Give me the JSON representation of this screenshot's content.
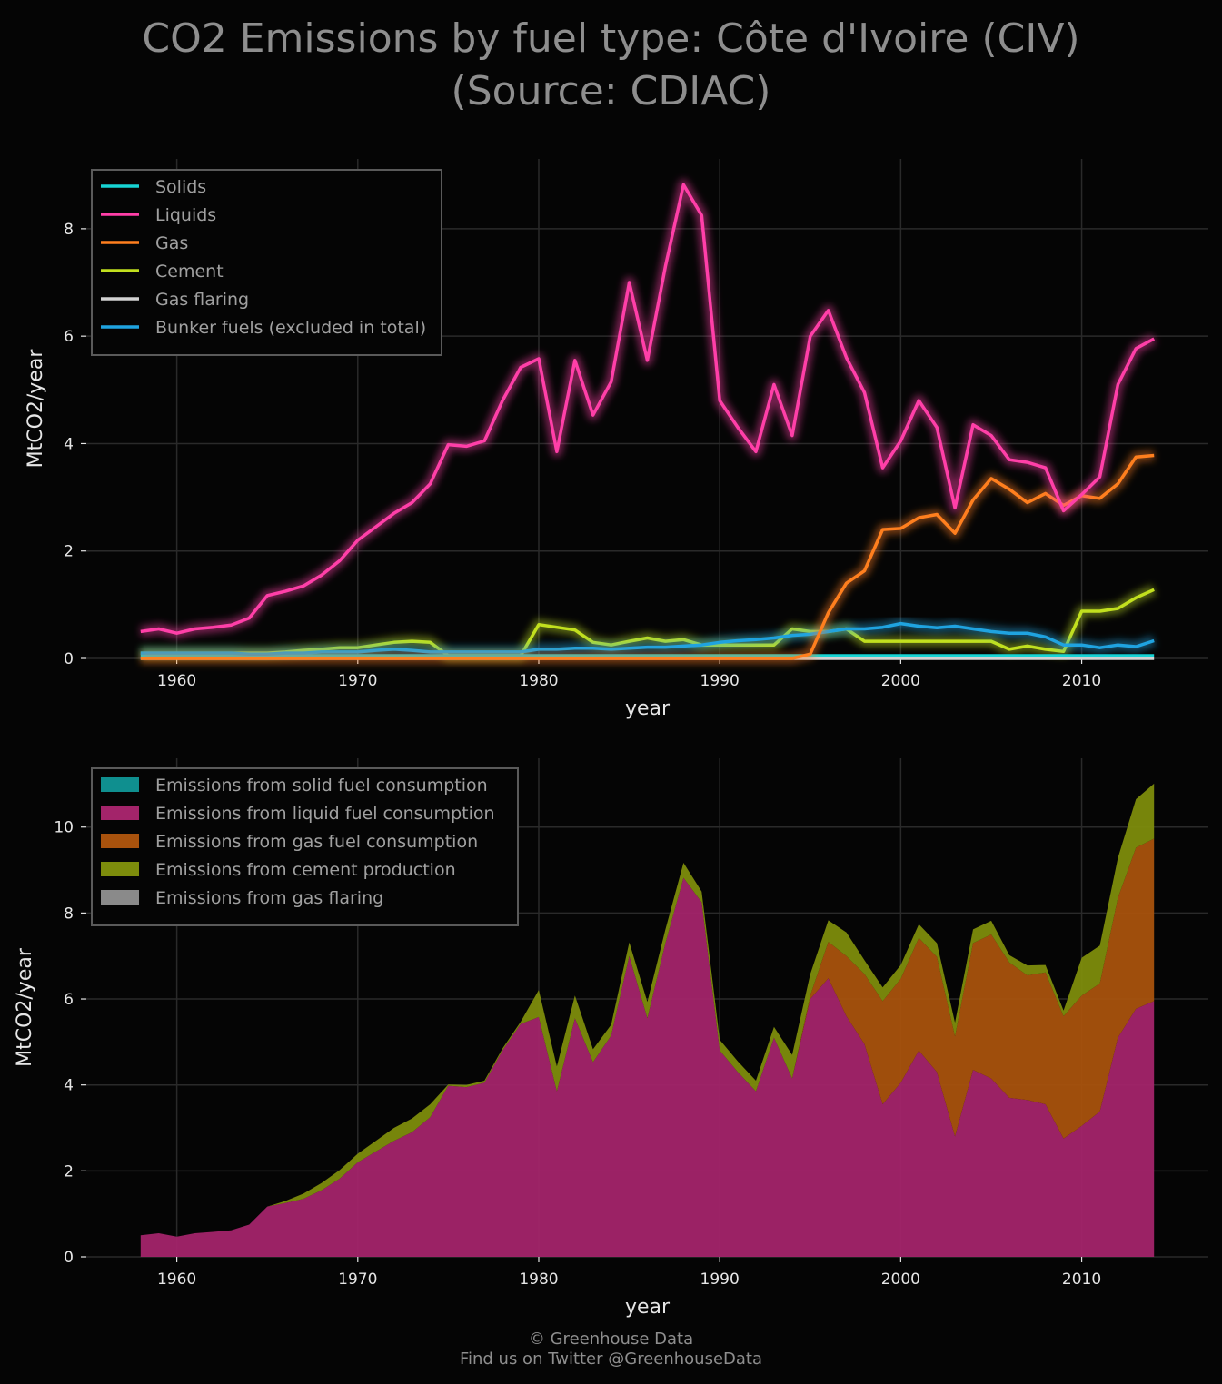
{
  "title": {
    "line1": "CO2 Emissions by fuel type: Côte d'Ivoire (CIV)",
    "line2": "(Source: CDIAC)"
  },
  "footer": {
    "line1": "© Greenhouse Data",
    "line2": "Find us on Twitter @GreenhouseData"
  },
  "chart_data": [
    {
      "type": "line",
      "xlabel": "year",
      "ylabel": "MtCO2/year",
      "xlim": [
        1955,
        2017
      ],
      "ylim": [
        0,
        9.3
      ],
      "xticks": [
        1960,
        1970,
        1980,
        1990,
        2000,
        2010
      ],
      "yticks": [
        0,
        2,
        4,
        6,
        8
      ],
      "grid": true,
      "legend_position": "top-left",
      "x": [
        1958,
        1959,
        1960,
        1961,
        1962,
        1963,
        1964,
        1965,
        1966,
        1967,
        1968,
        1969,
        1970,
        1971,
        1972,
        1973,
        1974,
        1975,
        1976,
        1977,
        1978,
        1979,
        1980,
        1981,
        1982,
        1983,
        1984,
        1985,
        1986,
        1987,
        1988,
        1989,
        1990,
        1991,
        1992,
        1993,
        1994,
        1995,
        1996,
        1997,
        1998,
        1999,
        2000,
        2001,
        2002,
        2003,
        2004,
        2005,
        2006,
        2007,
        2008,
        2009,
        2010,
        2011,
        2012,
        2013,
        2014
      ],
      "series": [
        {
          "name": "Solids",
          "color": "#17d4d4",
          "glow": false,
          "values": [
            0.05,
            0.05,
            0.05,
            0.05,
            0.05,
            0.05,
            0.05,
            0.05,
            0.05,
            0.05,
            0.05,
            0.05,
            0.05,
            0.05,
            0.05,
            0.05,
            0.05,
            0.05,
            0.05,
            0.05,
            0.05,
            0.05,
            0.05,
            0.05,
            0.05,
            0.05,
            0.05,
            0.05,
            0.05,
            0.05,
            0.05,
            0.05,
            0.05,
            0.05,
            0.05,
            0.05,
            0.05,
            0.05,
            0.05,
            0.05,
            0.05,
            0.05,
            0.05,
            0.05,
            0.05,
            0.05,
            0.05,
            0.05,
            0.05,
            0.05,
            0.05,
            0.05,
            0.05,
            0.05,
            0.05,
            0.05,
            0.05
          ]
        },
        {
          "name": "Liquids",
          "color": "#ff3fa8",
          "glow": true,
          "values": [
            0.5,
            0.55,
            0.47,
            0.55,
            0.58,
            0.62,
            0.75,
            1.17,
            1.25,
            1.35,
            1.55,
            1.82,
            2.2,
            2.45,
            2.7,
            2.9,
            3.25,
            3.98,
            3.95,
            4.05,
            4.8,
            5.42,
            5.58,
            3.85,
            5.55,
            4.53,
            5.15,
            7.0,
            5.55,
            7.3,
            8.82,
            8.25,
            4.8,
            4.3,
            3.85,
            5.1,
            4.15,
            6.0,
            6.48,
            5.6,
            4.95,
            3.55,
            4.05,
            4.8,
            4.3,
            2.8,
            4.35,
            4.15,
            3.7,
            3.65,
            3.55,
            2.75,
            3.05,
            3.38,
            5.1,
            5.77,
            5.95
          ]
        },
        {
          "name": "Gas",
          "color": "#ff7f1e",
          "glow": true,
          "values": [
            0,
            0,
            0,
            0,
            0,
            0,
            0,
            0,
            0,
            0,
            0,
            0,
            0,
            0,
            0,
            0,
            0,
            0,
            0,
            0,
            0,
            0,
            0,
            0,
            0,
            0,
            0,
            0,
            0,
            0,
            0,
            0,
            0,
            0,
            0,
            0,
            0,
            0.08,
            0.85,
            1.4,
            1.63,
            2.4,
            2.42,
            2.62,
            2.68,
            2.33,
            2.95,
            3.35,
            3.15,
            2.9,
            3.07,
            2.85,
            3.03,
            2.98,
            3.25,
            3.75,
            3.78
          ]
        },
        {
          "name": "Cement",
          "color": "#c2e01e",
          "glow": true,
          "values": [
            0.1,
            0.1,
            0.1,
            0.1,
            0.1,
            0.1,
            0.1,
            0.1,
            0.12,
            0.15,
            0.17,
            0.2,
            0.2,
            0.25,
            0.3,
            0.32,
            0.3,
            0.05,
            0.05,
            0.05,
            0.05,
            0.05,
            0.63,
            0.58,
            0.53,
            0.3,
            0.25,
            0.32,
            0.38,
            0.32,
            0.35,
            0.25,
            0.25,
            0.25,
            0.25,
            0.25,
            0.55,
            0.5,
            0.5,
            0.55,
            0.32,
            0.32,
            0.32,
            0.32,
            0.32,
            0.32,
            0.32,
            0.32,
            0.17,
            0.23,
            0.17,
            0.13,
            0.88,
            0.88,
            0.93,
            1.13,
            1.28
          ]
        },
        {
          "name": "Gas flaring",
          "color": "#d2d2d2",
          "glow": false,
          "values": [
            0,
            0,
            0,
            0,
            0,
            0,
            0,
            0,
            0,
            0,
            0,
            0,
            0,
            0,
            0,
            0,
            0,
            0,
            0,
            0,
            0,
            0,
            0,
            0,
            0,
            0,
            0,
            0,
            0,
            0,
            0,
            0,
            0,
            0,
            0,
            0,
            0,
            0,
            0,
            0,
            0,
            0,
            0,
            0,
            0,
            0,
            0,
            0,
            0,
            0,
            0,
            0,
            0,
            0,
            0,
            0,
            0
          ]
        },
        {
          "name": "Bunker fuels (excluded in total)",
          "color": "#1fa3e0",
          "glow": true,
          "values": [
            0.1,
            0.1,
            0.1,
            0.1,
            0.1,
            0.1,
            0.08,
            0.08,
            0.1,
            0.1,
            0.12,
            0.12,
            0.12,
            0.15,
            0.17,
            0.15,
            0.12,
            0.12,
            0.12,
            0.12,
            0.12,
            0.12,
            0.17,
            0.17,
            0.19,
            0.19,
            0.17,
            0.19,
            0.21,
            0.21,
            0.23,
            0.25,
            0.3,
            0.33,
            0.35,
            0.38,
            0.43,
            0.45,
            0.5,
            0.55,
            0.55,
            0.58,
            0.65,
            0.6,
            0.57,
            0.6,
            0.55,
            0.5,
            0.47,
            0.47,
            0.4,
            0.25,
            0.25,
            0.2,
            0.25,
            0.22,
            0.33
          ]
        }
      ]
    },
    {
      "type": "area",
      "stacked": true,
      "xlabel": "year",
      "ylabel": "MtCO2/year",
      "xlim": [
        1955,
        2017
      ],
      "ylim": [
        0,
        11.6
      ],
      "xticks": [
        1960,
        1970,
        1980,
        1990,
        2000,
        2010
      ],
      "yticks": [
        0,
        2,
        4,
        6,
        8,
        10
      ],
      "grid": true,
      "legend_position": "top-left",
      "x": [
        1958,
        1959,
        1960,
        1961,
        1962,
        1963,
        1964,
        1965,
        1966,
        1967,
        1968,
        1969,
        1970,
        1971,
        1972,
        1973,
        1974,
        1975,
        1976,
        1977,
        1978,
        1979,
        1980,
        1981,
        1982,
        1983,
        1984,
        1985,
        1986,
        1987,
        1988,
        1989,
        1990,
        1991,
        1992,
        1993,
        1994,
        1995,
        1996,
        1997,
        1998,
        1999,
        2000,
        2001,
        2002,
        2003,
        2004,
        2005,
        2006,
        2007,
        2008,
        2009,
        2010,
        2011,
        2012,
        2013,
        2014
      ],
      "series": [
        {
          "name": "Emissions from solid fuel consumption",
          "color": "#0f8f8f",
          "values": [
            0,
            0,
            0,
            0,
            0,
            0,
            0,
            0,
            0,
            0,
            0,
            0,
            0,
            0,
            0,
            0,
            0,
            0,
            0,
            0,
            0,
            0,
            0,
            0,
            0,
            0,
            0,
            0,
            0,
            0,
            0,
            0,
            0,
            0,
            0,
            0,
            0,
            0,
            0,
            0,
            0,
            0,
            0,
            0,
            0,
            0,
            0,
            0,
            0,
            0,
            0,
            0,
            0,
            0,
            0,
            0,
            0
          ]
        },
        {
          "name": "Emissions from liquid fuel consumption",
          "color": "#a3246a",
          "values": [
            0.5,
            0.55,
            0.47,
            0.55,
            0.58,
            0.62,
            0.75,
            1.17,
            1.25,
            1.35,
            1.55,
            1.82,
            2.2,
            2.45,
            2.7,
            2.9,
            3.25,
            3.98,
            3.95,
            4.05,
            4.8,
            5.42,
            5.58,
            3.85,
            5.55,
            4.53,
            5.15,
            7.0,
            5.55,
            7.3,
            8.82,
            8.25,
            4.8,
            4.3,
            3.85,
            5.1,
            4.15,
            6.0,
            6.48,
            5.6,
            4.95,
            3.55,
            4.05,
            4.8,
            4.3,
            2.8,
            4.35,
            4.15,
            3.7,
            3.65,
            3.55,
            2.75,
            3.05,
            3.38,
            5.1,
            5.77,
            5.95
          ]
        },
        {
          "name": "Emissions from gas fuel consumption",
          "color": "#a8520d",
          "values": [
            0,
            0,
            0,
            0,
            0,
            0,
            0,
            0,
            0,
            0,
            0,
            0,
            0,
            0,
            0,
            0,
            0,
            0,
            0,
            0,
            0,
            0,
            0,
            0,
            0,
            0,
            0,
            0,
            0,
            0,
            0,
            0,
            0,
            0,
            0,
            0,
            0,
            0.08,
            0.85,
            1.4,
            1.63,
            2.4,
            2.42,
            2.62,
            2.68,
            2.33,
            2.95,
            3.35,
            3.15,
            2.9,
            3.07,
            2.85,
            3.03,
            2.98,
            3.25,
            3.75,
            3.78
          ]
        },
        {
          "name": "Emissions from cement production",
          "color": "#7d8c0c",
          "values": [
            0,
            0,
            0,
            0,
            0,
            0,
            0,
            0,
            0.05,
            0.12,
            0.17,
            0.2,
            0.2,
            0.25,
            0.3,
            0.32,
            0.3,
            0.03,
            0.05,
            0.05,
            0.05,
            0.05,
            0.63,
            0.58,
            0.53,
            0.3,
            0.25,
            0.32,
            0.38,
            0.32,
            0.35,
            0.25,
            0.25,
            0.25,
            0.25,
            0.25,
            0.55,
            0.5,
            0.5,
            0.55,
            0.32,
            0.32,
            0.32,
            0.32,
            0.32,
            0.32,
            0.32,
            0.32,
            0.17,
            0.23,
            0.17,
            0.13,
            0.88,
            0.88,
            0.93,
            1.13,
            1.28
          ]
        },
        {
          "name": "Emissions from gas flaring",
          "color": "#8a8a8a",
          "values": [
            0,
            0,
            0,
            0,
            0,
            0,
            0,
            0,
            0,
            0,
            0,
            0,
            0,
            0,
            0,
            0,
            0,
            0,
            0,
            0,
            0,
            0,
            0,
            0,
            0,
            0,
            0,
            0,
            0,
            0,
            0,
            0,
            0,
            0,
            0,
            0,
            0,
            0,
            0,
            0,
            0,
            0,
            0,
            0,
            0,
            0,
            0,
            0,
            0,
            0,
            0,
            0,
            0,
            0,
            0,
            0,
            0
          ]
        }
      ]
    }
  ]
}
